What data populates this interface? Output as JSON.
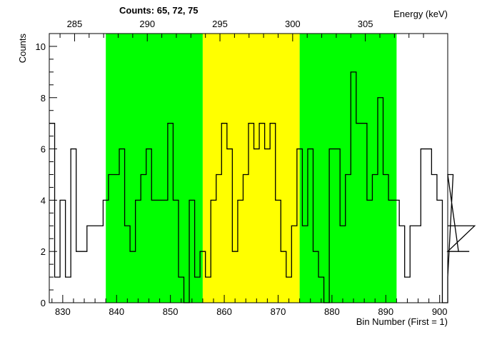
{
  "chart_data": {
    "type": "histogram",
    "title": "Counts:   65,   72,   75",
    "xlabel": "Bin Number (First = 1)",
    "ylabel": "Counts",
    "x2label": "Energy (keV)",
    "xlim": [
      827.5,
      901.5
    ],
    "ylim": [
      0,
      10.5
    ],
    "x_first": 828,
    "bin_width": 1,
    "values": [
      7,
      1,
      4,
      1,
      6,
      2,
      2,
      3,
      3,
      3,
      4,
      5,
      5,
      6,
      3,
      2,
      4,
      5,
      6,
      4,
      4,
      4,
      7,
      4,
      1,
      0,
      4,
      1,
      2,
      1,
      4,
      5,
      7,
      6,
      2,
      4,
      5,
      7,
      6,
      7,
      6,
      7,
      4,
      2,
      1,
      3,
      6,
      3,
      6,
      2,
      1,
      0,
      6,
      6,
      3,
      5,
      9,
      7,
      7,
      4,
      5,
      8,
      5,
      4,
      4,
      3,
      1,
      3,
      3,
      6,
      6,
      5,
      4,
      0,
      1,
      5,
      2,
      2,
      2,
      3
    ],
    "regions": [
      {
        "from": 838,
        "to": 856,
        "color": "#00ff00",
        "counts": 65
      },
      {
        "from": 856,
        "to": 874,
        "color": "#ffff00",
        "counts": 72
      },
      {
        "from": 874,
        "to": 892,
        "color": "#00ff00",
        "counts": 75
      }
    ],
    "x_ticks": [
      830,
      840,
      850,
      860,
      870,
      880,
      890,
      900
    ],
    "y_ticks": [
      0,
      2,
      4,
      6,
      8,
      10
    ],
    "energy_ticks": [
      {
        "label": "285",
        "bin": 832.2
      },
      {
        "label": "290",
        "bin": 845.7
      },
      {
        "label": "295",
        "bin": 859.2
      },
      {
        "label": "300",
        "bin": 872.7
      },
      {
        "label": "305",
        "bin": 886.2
      }
    ],
    "grid": false
  }
}
